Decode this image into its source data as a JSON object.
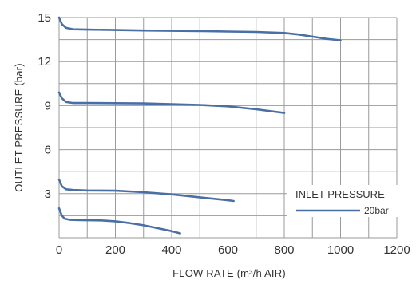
{
  "chart_data": {
    "type": "line",
    "title": "",
    "xlabel": "FLOW RATE (m³/h AIR)",
    "ylabel": "OUTLET PRESSURE (bar)",
    "xlim": [
      0,
      1200
    ],
    "ylim": [
      0,
      15
    ],
    "x_ticks": [
      0,
      200,
      400,
      600,
      800,
      1000,
      1200
    ],
    "y_ticks": [
      3,
      6,
      9,
      12,
      15
    ],
    "x_grid_step": 100,
    "y_grid_step": 1.5,
    "grid": true,
    "line_color": "#4a6fa5",
    "grid_color": "#9a9a9a",
    "legend": {
      "placement": "bottom-right",
      "title": "INLET PRESSURE",
      "entries": [
        {
          "label": "20bar"
        }
      ]
    },
    "series": [
      {
        "x": [
          0,
          10,
          25,
          50,
          100,
          200,
          300,
          400,
          500,
          600,
          700,
          800,
          850,
          900,
          950,
          1000
        ],
        "y": [
          15.0,
          14.55,
          14.3,
          14.2,
          14.18,
          14.15,
          14.12,
          14.1,
          14.08,
          14.05,
          14.02,
          13.95,
          13.85,
          13.7,
          13.55,
          13.45
        ]
      },
      {
        "x": [
          0,
          10,
          25,
          50,
          100,
          200,
          300,
          400,
          500,
          600,
          700,
          800
        ],
        "y": [
          9.9,
          9.5,
          9.25,
          9.18,
          9.18,
          9.17,
          9.15,
          9.1,
          9.05,
          8.95,
          8.75,
          8.5
        ]
      },
      {
        "x": [
          0,
          10,
          25,
          50,
          100,
          200,
          300,
          400,
          500,
          600,
          620
        ],
        "y": [
          3.95,
          3.5,
          3.3,
          3.25,
          3.22,
          3.2,
          3.1,
          2.95,
          2.75,
          2.55,
          2.5
        ]
      },
      {
        "x": [
          0,
          10,
          20,
          40,
          80,
          150,
          200,
          250,
          300,
          350,
          400,
          430
        ],
        "y": [
          2.0,
          1.5,
          1.3,
          1.22,
          1.2,
          1.18,
          1.12,
          1.0,
          0.85,
          0.65,
          0.45,
          0.3
        ]
      }
    ]
  }
}
